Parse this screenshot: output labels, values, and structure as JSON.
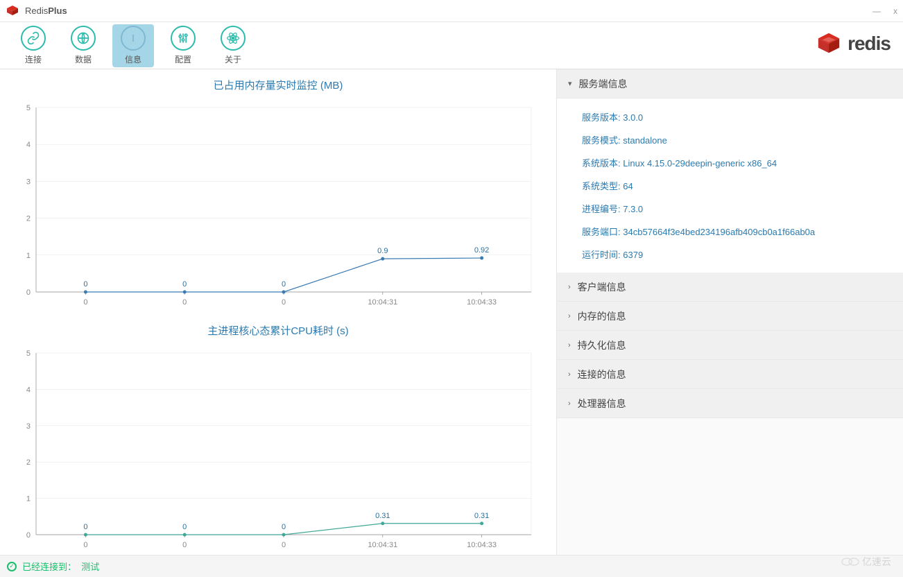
{
  "app": {
    "title_prefix": "Redis",
    "title_suffix": "Plus"
  },
  "toolbar": {
    "items": [
      {
        "id": "connect",
        "label": "连接"
      },
      {
        "id": "data",
        "label": "数据"
      },
      {
        "id": "info",
        "label": "信息"
      },
      {
        "id": "config",
        "label": "配置"
      },
      {
        "id": "about",
        "label": "关于"
      }
    ],
    "active_index": 2
  },
  "brand": {
    "text": "redis"
  },
  "chart1": {
    "title": "已占用内存量实时监控 (MB)",
    "type": "line",
    "ylim": [
      0,
      5
    ],
    "ytick_step": 1,
    "x_labels": [
      "0",
      "0",
      "0",
      "10:04:31",
      "10:04:33"
    ],
    "values": [
      0,
      0,
      0,
      0.9,
      0.92
    ],
    "value_labels": [
      "0",
      "0",
      "0",
      "0.9",
      "0.92"
    ],
    "line_color": "#3b7bb3",
    "point_color": "#3b7bb3",
    "label_color": "#2a6f9e",
    "axis_color": "#888888",
    "background_color": "#ffffff"
  },
  "chart2": {
    "title": "主进程核心态累计CPU耗时 (s)",
    "type": "line",
    "ylim": [
      0,
      5
    ],
    "ytick_step": 1,
    "x_labels": [
      "0",
      "0",
      "0",
      "10:04:31",
      "10:04:33"
    ],
    "values": [
      0,
      0,
      0,
      0.31,
      0.31
    ],
    "value_labels": [
      "0",
      "0",
      "0",
      "0.31",
      "0.31"
    ],
    "line_color": "#3fa896",
    "point_color": "#3fa896",
    "label_color": "#2a6f9e",
    "axis_color": "#888888",
    "background_color": "#ffffff"
  },
  "side_panel": {
    "sections": [
      {
        "title": "服务端信息",
        "expanded": true,
        "rows": [
          {
            "label": "服务版本",
            "value": "3.0.0"
          },
          {
            "label": "服务模式",
            "value": "standalone"
          },
          {
            "label": "系统版本",
            "value": "Linux 4.15.0-29deepin-generic x86_64"
          },
          {
            "label": "系统类型",
            "value": "64"
          },
          {
            "label": "进程编号",
            "value": "7.3.0"
          },
          {
            "label": "服务端口",
            "value": "34cb57664f3e4bed234196afb409cb0a1f66ab0a"
          },
          {
            "label": "运行时间",
            "value": "6379"
          }
        ]
      },
      {
        "title": "客户端信息",
        "expanded": false,
        "rows": []
      },
      {
        "title": "内存的信息",
        "expanded": false,
        "rows": []
      },
      {
        "title": "持久化信息",
        "expanded": false,
        "rows": []
      },
      {
        "title": "连接的信息",
        "expanded": false,
        "rows": []
      },
      {
        "title": "处理器信息",
        "expanded": false,
        "rows": []
      }
    ]
  },
  "status": {
    "prefix": "已经连接到：",
    "target": "测试"
  },
  "watermark": {
    "text": "亿速云"
  },
  "colors": {
    "accent_teal": "#2bbbad",
    "accent_blue": "#2a7aaf",
    "active_tab_bg": "#a5d6e8",
    "status_green": "#19be6b"
  }
}
